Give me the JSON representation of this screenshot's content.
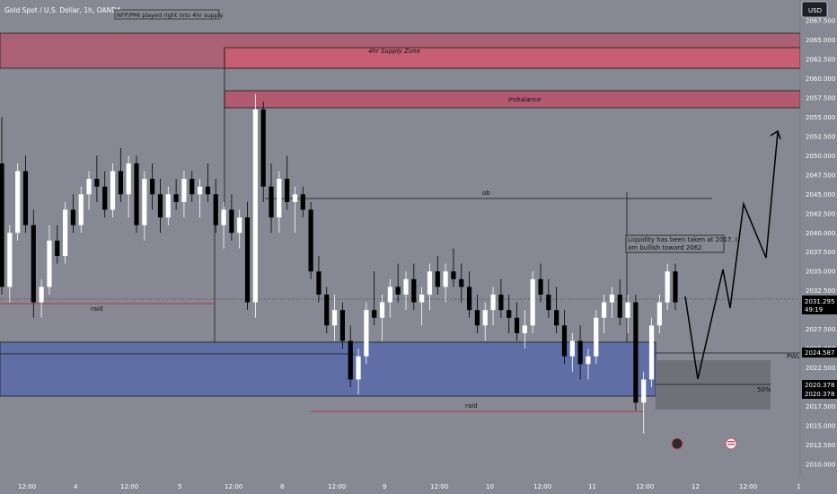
{
  "symbol": {
    "title": "Gold Spot / U.S. Dollar, 1h, OANDA"
  },
  "currency_button": "USD",
  "note_box": "NFP/PMI played right into 4hr supply",
  "zones": {
    "supply": "4hr Supply Zone",
    "imbalance": "Imbalance",
    "ob": "ob",
    "raid_left": "raid",
    "raid_bottom": "raid",
    "fifty": "50%",
    "pwl": "PWL"
  },
  "annotation": {
    "line1": "Liquidity has been taken at 2017. I",
    "line2": "am bullish toward 2062"
  },
  "price_axis": {
    "ticks": [
      "2067.500",
      "2065.000",
      "2062.500",
      "2060.000",
      "2057.500",
      "2055.000",
      "2052.500",
      "2050.000",
      "2047.500",
      "2045.000",
      "2042.500",
      "2040.000",
      "2037.500",
      "2035.000",
      "2032.500",
      "2030.000",
      "2027.500",
      "2025.000",
      "2022.500",
      "2020.000",
      "2017.500",
      "2015.000",
      "2012.500",
      "2010.000"
    ],
    "current_price": "2031.295",
    "countdown": "49:19",
    "pwl_price": "2024.587",
    "level_a": "2020.378",
    "level_b": "2020.378"
  },
  "time_axis": [
    "12:00",
    "4",
    "12:00",
    "5",
    "12:00",
    "8",
    "12:00",
    "9",
    "12:00",
    "10",
    "12:00",
    "11",
    "12:00",
    "12",
    "12:00",
    "1"
  ],
  "colors": {
    "bg": "#868993",
    "supply": "#b25a70",
    "blue": "#5f6fa6",
    "bull": "#ffffff",
    "bear": "#000000"
  },
  "chart_data": {
    "type": "candlestick",
    "title": "Gold Spot / U.S. Dollar, 1h, OANDA",
    "ylim": [
      2009,
      2069
    ],
    "note": "",
    "candles": [
      [
        2049,
        2055,
        2032,
        2033
      ],
      [
        2033,
        2041,
        2031,
        2040
      ],
      [
        2040,
        2049,
        2039,
        2048
      ],
      [
        2048,
        2050,
        2040,
        2041
      ],
      [
        2041,
        2043,
        2029,
        2031
      ],
      [
        2031,
        2034,
        2029,
        2033
      ],
      [
        2033,
        2041,
        2032,
        2039
      ],
      [
        2039,
        2041,
        2036,
        2037
      ],
      [
        2037,
        2044,
        2036,
        2043
      ],
      [
        2043,
        2045,
        2040,
        2041
      ],
      [
        2041,
        2046,
        2040,
        2045
      ],
      [
        2045,
        2048,
        2043,
        2047
      ],
      [
        2047,
        2050,
        2044,
        2046
      ],
      [
        2046,
        2048,
        2042,
        2043
      ],
      [
        2043,
        2049,
        2042,
        2048
      ],
      [
        2048,
        2051,
        2044,
        2045
      ],
      [
        2045,
        2050,
        2042,
        2049
      ],
      [
        2049,
        2050,
        2040,
        2041
      ],
      [
        2041,
        2048,
        2039,
        2047
      ],
      [
        2047,
        2049,
        2043,
        2045
      ],
      [
        2045,
        2047,
        2040,
        2042
      ],
      [
        2042,
        2046,
        2041,
        2045
      ],
      [
        2045,
        2047,
        2043,
        2044
      ],
      [
        2044,
        2048,
        2042,
        2047
      ],
      [
        2047,
        2048,
        2044,
        2045
      ],
      [
        2045,
        2047,
        2042,
        2046
      ],
      [
        2046,
        2049,
        2044,
        2045
      ],
      [
        2045,
        2047,
        2040,
        2041
      ],
      [
        2041,
        2044,
        2038,
        2043
      ],
      [
        2043,
        2045,
        2039,
        2040
      ],
      [
        2040,
        2043,
        2038,
        2042
      ],
      [
        2042,
        2044,
        2030,
        2031
      ],
      [
        2031,
        2058,
        2029,
        2056
      ],
      [
        2056,
        2057,
        2044,
        2046
      ],
      [
        2046,
        2049,
        2040,
        2042
      ],
      [
        2042,
        2048,
        2040,
        2047
      ],
      [
        2047,
        2050,
        2043,
        2044
      ],
      [
        2044,
        2046,
        2040,
        2045
      ],
      [
        2045,
        2046,
        2042,
        2043
      ],
      [
        2043,
        2044,
        2034,
        2035
      ],
      [
        2035,
        2037,
        2031,
        2032
      ],
      [
        2032,
        2033,
        2027,
        2028
      ],
      [
        2028,
        2032,
        2026,
        2030
      ],
      [
        2030,
        2031,
        2025,
        2026
      ],
      [
        2026,
        2028,
        2020,
        2021
      ],
      [
        2021,
        2025,
        2019,
        2024
      ],
      [
        2024,
        2031,
        2023,
        2030
      ],
      [
        2030,
        2035,
        2028,
        2029
      ],
      [
        2029,
        2032,
        2026,
        2031
      ],
      [
        2031,
        2034,
        2029,
        2033
      ],
      [
        2033,
        2036,
        2031,
        2032
      ],
      [
        2032,
        2035,
        2030,
        2034
      ],
      [
        2034,
        2036,
        2030,
        2031
      ],
      [
        2031,
        2033,
        2028,
        2032
      ],
      [
        2032,
        2036,
        2030,
        2035
      ],
      [
        2035,
        2037,
        2032,
        2033
      ],
      [
        2033,
        2036,
        2031,
        2035
      ],
      [
        2035,
        2038,
        2033,
        2034
      ],
      [
        2034,
        2036,
        2031,
        2033
      ],
      [
        2033,
        2035,
        2029,
        2030
      ],
      [
        2030,
        2032,
        2027,
        2028
      ],
      [
        2028,
        2031,
        2026,
        2030
      ],
      [
        2030,
        2033,
        2028,
        2032
      ],
      [
        2032,
        2034,
        2029,
        2030
      ],
      [
        2030,
        2032,
        2027,
        2029
      ],
      [
        2029,
        2031,
        2026,
        2027
      ],
      [
        2027,
        2030,
        2025,
        2028
      ],
      [
        2028,
        2035,
        2027,
        2034
      ],
      [
        2034,
        2036,
        2031,
        2032
      ],
      [
        2032,
        2034,
        2029,
        2030
      ],
      [
        2030,
        2033,
        2027,
        2028
      ],
      [
        2028,
        2030,
        2023,
        2024
      ],
      [
        2024,
        2027,
        2022,
        2026
      ],
      [
        2026,
        2028,
        2021,
        2023
      ],
      [
        2023,
        2025,
        2021,
        2024
      ],
      [
        2024,
        2030,
        2023,
        2029
      ],
      [
        2029,
        2032,
        2027,
        2031
      ],
      [
        2031,
        2033,
        2029,
        2032
      ],
      [
        2032,
        2034,
        2028,
        2029
      ],
      [
        2029,
        2032,
        2027,
        2031
      ],
      [
        2031,
        2032,
        2017,
        2018
      ],
      [
        2018,
        2022,
        2014,
        2021
      ],
      [
        2021,
        2029,
        2020,
        2028
      ],
      [
        2028,
        2032,
        2027,
        2031
      ],
      [
        2031,
        2036,
        2030,
        2035
      ],
      [
        2035,
        2036,
        2030,
        2031
      ]
    ]
  }
}
